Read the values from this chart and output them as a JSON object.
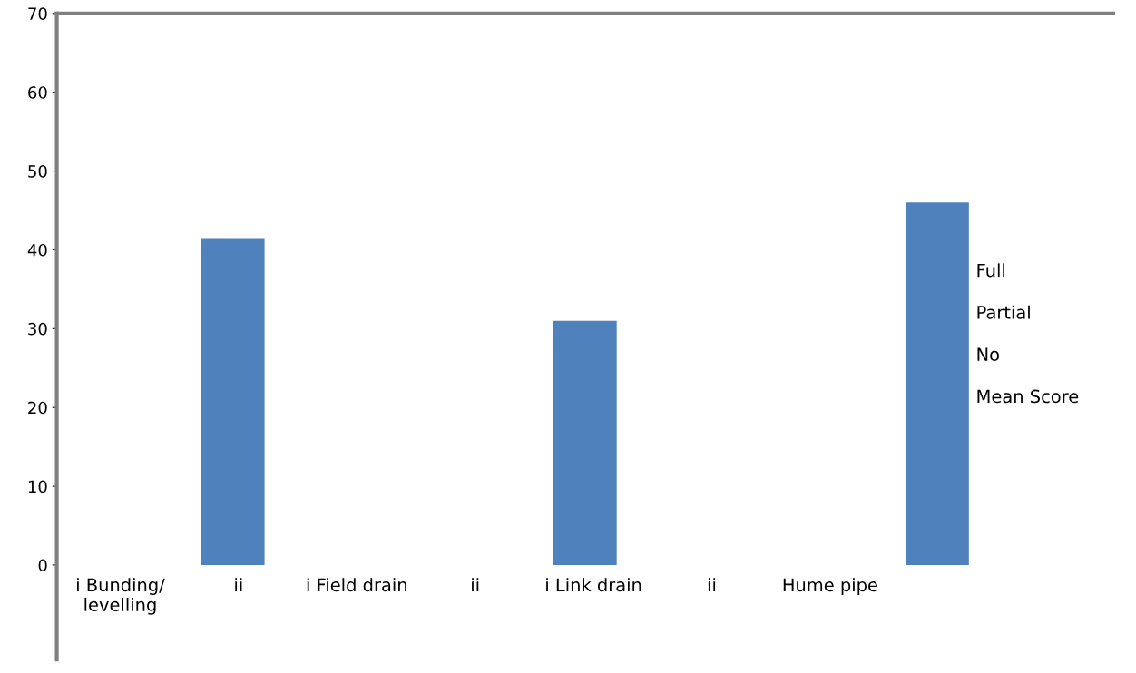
{
  "chart_data": {
    "type": "bar",
    "categories": [
      null,
      null,
      null
    ],
    "values": [
      41.5,
      31,
      46
    ],
    "color": "#4f81bd",
    "ylim": [
      -12,
      70
    ],
    "yticks": [
      0,
      10,
      20,
      30,
      40,
      50,
      60,
      70
    ],
    "tick_labels": "y",
    "grid": false,
    "annotations": [
      "i Bunding/\nlevelling",
      "ii",
      "i Field drain",
      "ii",
      "i Link drain",
      "ii",
      "Hume pipe",
      "Full",
      "Partial",
      "No",
      "Mean Score"
    ]
  }
}
